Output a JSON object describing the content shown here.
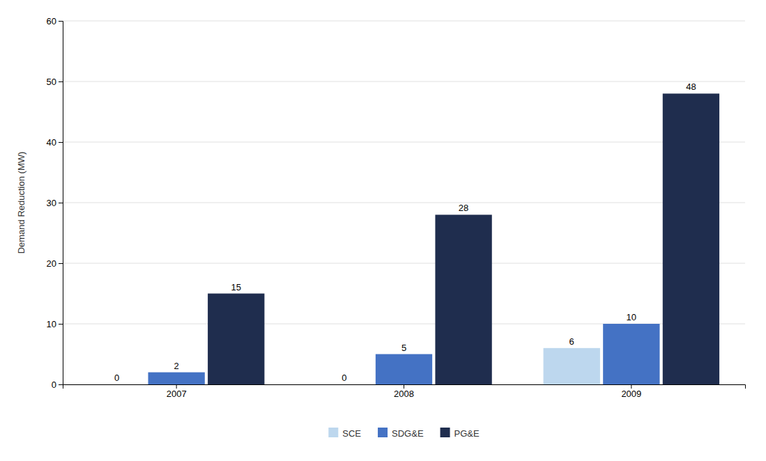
{
  "chart_data": {
    "type": "bar",
    "categories": [
      "2007",
      "2008",
      "2009"
    ],
    "series": [
      {
        "name": "SCE",
        "color": "#BDD7EE",
        "values": [
          0,
          0,
          6
        ]
      },
      {
        "name": "SDG&E",
        "color": "#4472C4",
        "values": [
          2,
          5,
          10
        ]
      },
      {
        "name": "PG&E",
        "color": "#1F2D4E",
        "values": [
          15,
          28,
          48
        ]
      }
    ],
    "ylabel": "Demand Reduction (MW)",
    "ylim": [
      0,
      60
    ],
    "yticks": [
      0,
      10,
      20,
      30,
      40,
      50,
      60
    ],
    "grid": true,
    "legend": "bottom",
    "data_labels": true
  }
}
